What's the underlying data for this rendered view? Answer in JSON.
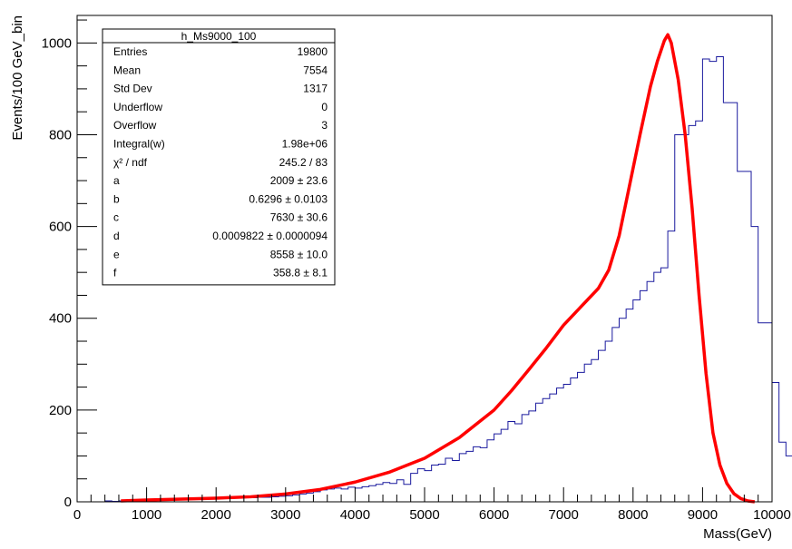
{
  "chart_data": {
    "type": "line",
    "title": "",
    "xlabel": "Mass(GeV)",
    "ylabel": "Events/100 GeV_bin",
    "xlim": [
      0,
      10000
    ],
    "ylim": [
      0,
      1060
    ],
    "x_ticks": [
      0,
      1000,
      2000,
      3000,
      4000,
      5000,
      6000,
      7000,
      8000,
      9000,
      10000
    ],
    "y_ticks": [
      0,
      200,
      400,
      600,
      800,
      1000
    ],
    "x_tick_labels": [
      "0",
      "1000",
      "2000",
      "3000",
      "4000",
      "5000",
      "6000",
      "7000",
      "8000",
      "9000",
      "10000"
    ],
    "y_tick_labels": [
      "0",
      "200",
      "400",
      "600",
      "800",
      "1000"
    ],
    "grid": false,
    "legend_placement": "top-left",
    "stats_box": {
      "title": "h_Ms9000_100",
      "rows": [
        {
          "label": "Entries",
          "value": "19800"
        },
        {
          "label": "Mean",
          "value": "7554"
        },
        {
          "label": "Std Dev",
          "value": "1317"
        },
        {
          "label": "Underflow",
          "value": "0"
        },
        {
          "label": "Overflow",
          "value": "3"
        },
        {
          "label": "Integral(w)",
          "value": "1.98e+06"
        },
        {
          "label": "χ² / ndf",
          "value": "245.2 / 83"
        },
        {
          "label": "a",
          "value": "2009 ± 23.6"
        },
        {
          "label": "b",
          "value": "0.6296 ± 0.0103"
        },
        {
          "label": "c",
          "value": "7630 ± 30.6"
        },
        {
          "label": "d",
          "value": "0.0009822 ± 0.0000094"
        },
        {
          "label": "e",
          "value": "8558 ± 10.0"
        },
        {
          "label": "f",
          "value": "358.8 ± 8.1"
        }
      ]
    },
    "series": [
      {
        "type": "histogram",
        "color": "#1a1a9e",
        "bin_width": 100,
        "x_start": 400,
        "values": [
          2,
          1,
          2,
          2,
          1,
          3,
          3,
          3,
          4,
          4,
          5,
          5,
          5,
          6,
          6,
          7,
          7,
          7,
          8,
          8,
          9,
          9,
          10,
          10,
          11,
          12,
          13,
          15,
          17,
          19,
          22,
          26,
          28,
          30,
          28,
          32,
          30,
          33,
          35,
          38,
          42,
          40,
          48,
          38,
          62,
          72,
          68,
          80,
          82,
          95,
          90,
          105,
          110,
          120,
          118,
          135,
          148,
          158,
          175,
          170,
          190,
          198,
          215,
          225,
          235,
          248,
          256,
          270,
          282,
          300,
          310,
          330,
          350,
          380,
          400,
          420,
          440,
          460,
          480,
          500,
          510,
          590,
          800,
          800,
          820,
          830,
          965,
          960,
          970,
          870,
          870,
          720,
          720,
          600,
          390,
          390,
          260,
          130,
          100,
          50,
          25,
          10,
          5
        ]
      },
      {
        "type": "fit",
        "color": "#ff0000",
        "x": [
          630,
          1000,
          1500,
          2000,
          2500,
          3000,
          3500,
          4000,
          4500,
          5000,
          5500,
          6000,
          6250,
          6500,
          6750,
          7000,
          7250,
          7500,
          7650,
          7800,
          7950,
          8100,
          8250,
          8350,
          8450,
          8500,
          8550,
          8650,
          8750,
          8850,
          8950,
          9050,
          9150,
          9250,
          9350,
          9450,
          9550,
          9650,
          9750
        ],
        "y": [
          2,
          4,
          6,
          8,
          11,
          17,
          27,
          43,
          65,
          95,
          140,
          200,
          242,
          288,
          335,
          385,
          425,
          465,
          505,
          580,
          690,
          800,
          905,
          960,
          1005,
          1018,
          1000,
          920,
          800,
          640,
          450,
          280,
          150,
          80,
          40,
          18,
          7,
          2,
          0
        ]
      }
    ]
  }
}
